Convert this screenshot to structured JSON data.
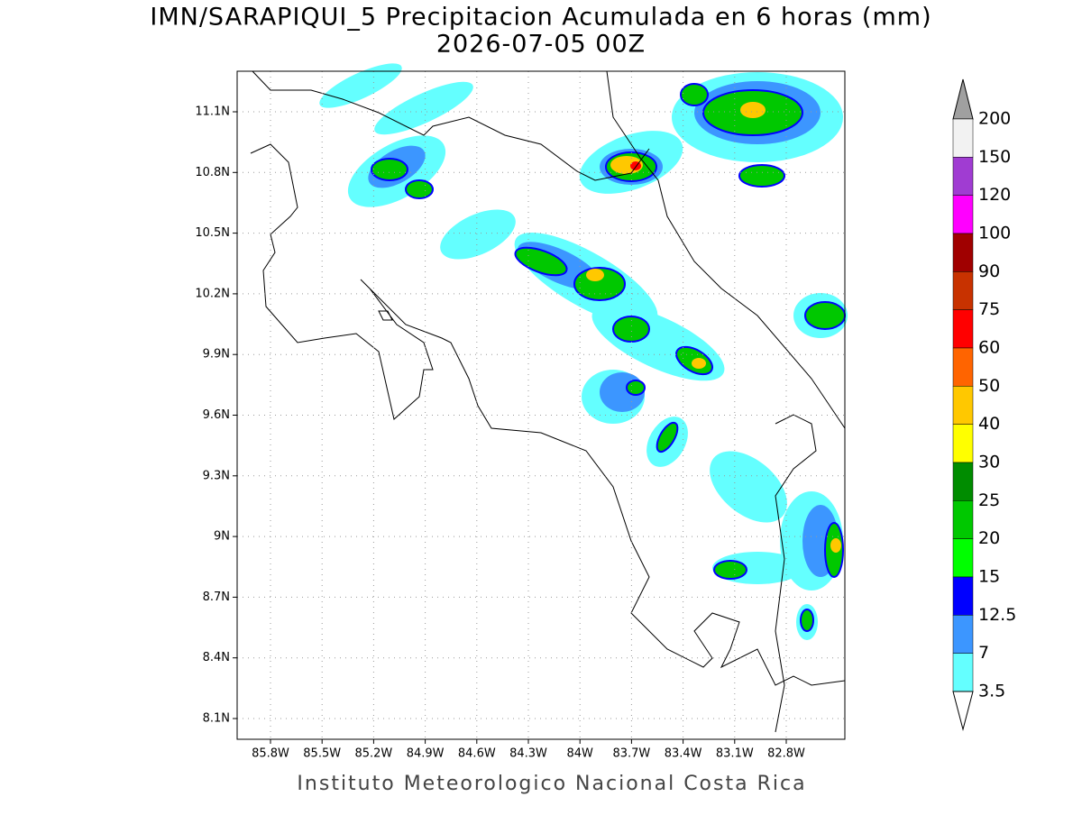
{
  "header": {
    "title": "IMN/SARAPIQUI_5 Precipitacion Acumulada en 6 horas (mm)",
    "subtitle": "2026-07-05 00Z"
  },
  "map": {
    "lat_labels": [
      "11.1N",
      "10.8N",
      "10.5N",
      "10.2N",
      "9.9N",
      "9.6N",
      "9.3N",
      "9N",
      "8.7N",
      "8.4N",
      "8.1N"
    ],
    "lon_labels": [
      "85.8W",
      "85.5W",
      "85.2W",
      "84.9W",
      "84.6W",
      "84.3W",
      "84W",
      "83.7W",
      "83.4W",
      "83.1W",
      "82.8W"
    ]
  },
  "colorbar": {
    "levels": [
      200,
      150,
      120,
      100,
      90,
      75,
      60,
      50,
      40,
      30,
      25,
      20,
      15,
      12.5,
      7,
      3.5
    ],
    "colors": [
      "#f2f2f2",
      "#a03cd2",
      "#ff00ff",
      "#a00000",
      "#c83200",
      "#ff0000",
      "#ff6400",
      "#ffc800",
      "#ffff00",
      "#008c00",
      "#00c800",
      "#00ff00",
      "#0000ff",
      "#3c96ff",
      "#64ffff"
    ],
    "over_color": "#a0a0a0",
    "under_color": "#ffffff"
  },
  "footer": "Instituto Meteorologico Nacional Costa Rica"
}
